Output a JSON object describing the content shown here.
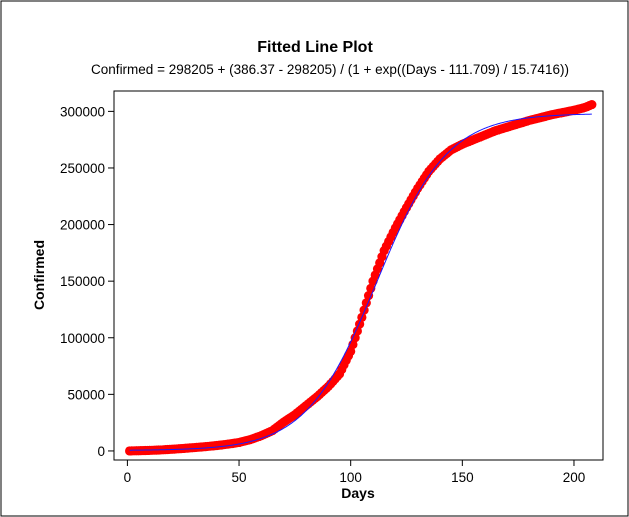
{
  "chart_data": {
    "type": "scatter",
    "title": "Fitted Line Plot",
    "subtitle": "Confirmed = 298205 + (386.37 - 298205) / (1 + exp((Days - 111.709) / 15.7416))",
    "xlabel": "Days",
    "ylabel": "Confirmed",
    "xlim": [
      -6,
      213
    ],
    "ylim": [
      -8000,
      318000
    ],
    "x_ticks": [
      0,
      50,
      100,
      150,
      200
    ],
    "y_ticks": [
      0,
      50000,
      100000,
      150000,
      200000,
      250000,
      300000
    ],
    "x_tick_labels": [
      "0",
      "50",
      "100",
      "150",
      "200"
    ],
    "y_tick_labels": [
      "0",
      "50000",
      "100000",
      "150000",
      "200000",
      "250000",
      "300000"
    ],
    "grid": false,
    "series": [
      {
        "kind": "points",
        "color": "#ff0000",
        "x_start": 1,
        "x_end": 208,
        "points": [
          [
            1,
            0
          ],
          [
            5,
            200
          ],
          [
            10,
            500
          ],
          [
            15,
            900
          ],
          [
            20,
            1500
          ],
          [
            25,
            2200
          ],
          [
            30,
            3000
          ],
          [
            35,
            3800
          ],
          [
            40,
            4800
          ],
          [
            45,
            6000
          ],
          [
            50,
            7500
          ],
          [
            55,
            10000
          ],
          [
            60,
            13500
          ],
          [
            65,
            18000
          ],
          [
            70,
            25500
          ],
          [
            75,
            32000
          ],
          [
            80,
            40000
          ],
          [
            85,
            48000
          ],
          [
            90,
            57000
          ],
          [
            95,
            68000
          ],
          [
            100,
            88000
          ],
          [
            105,
            118000
          ],
          [
            110,
            150000
          ],
          [
            115,
            177000
          ],
          [
            120,
            197000
          ],
          [
            125,
            215000
          ],
          [
            130,
            232000
          ],
          [
            135,
            247000
          ],
          [
            140,
            258000
          ],
          [
            145,
            266000
          ],
          [
            150,
            271000
          ],
          [
            155,
            275000
          ],
          [
            160,
            279000
          ],
          [
            165,
            283000
          ],
          [
            170,
            286000
          ],
          [
            175,
            289000
          ],
          [
            180,
            292000
          ],
          [
            185,
            294500
          ],
          [
            190,
            297000
          ],
          [
            195,
            299000
          ],
          [
            200,
            301000
          ],
          [
            205,
            303500
          ],
          [
            208,
            306000
          ]
        ]
      },
      {
        "kind": "fitted-line",
        "color": "#1a1aff",
        "model": "logistic",
        "params": {
          "top": 298205,
          "bottom": 386.37,
          "x0": 111.709,
          "scale": 15.7416
        },
        "x_range": [
          1,
          208
        ]
      }
    ]
  }
}
